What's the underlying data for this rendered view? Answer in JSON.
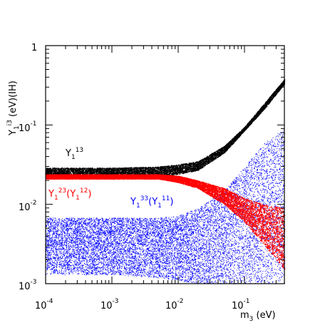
{
  "chart_data": {
    "type": "scatter",
    "x_scale": "log",
    "y_scale": "log",
    "xlim": [
      0.0001,
      0.4
    ],
    "ylim": [
      0.001,
      1
    ],
    "grid": false,
    "x_ticks": [
      {
        "base": "10",
        "exp": "-4"
      },
      {
        "base": "10",
        "exp": "-3"
      },
      {
        "base": "10",
        "exp": "-2"
      },
      {
        "base": "10",
        "exp": "-1"
      }
    ],
    "y_ticks": [
      {
        "base": "10",
        "exp": "-3"
      },
      {
        "base": "10",
        "exp": "-2"
      },
      {
        "base": "10",
        "exp": "-1"
      },
      {
        "base": "1",
        "exp": ""
      }
    ],
    "xlabel": {
      "main": "m",
      "sub": "3",
      "rest": " (eV)"
    },
    "ylabel": {
      "main": "Y",
      "sub": "1",
      "sup": "i3",
      "rest": " (eV)(IH)"
    },
    "annotations": [
      {
        "main": "Y",
        "sub": "1",
        "sup": "13",
        "rest": "",
        "color": "#000000"
      },
      {
        "main": "Y",
        "sub": "1",
        "sup": "23",
        "paren_main": "Y",
        "paren_sub": "1",
        "paren_sup": "12",
        "color": "#ff0000"
      },
      {
        "main": "Y",
        "sub": "1",
        "sup": "33",
        "paren_main": "Y",
        "paren_sub": "1",
        "paren_sup": "11",
        "color": "#0000ff"
      }
    ],
    "series": [
      {
        "color": "#000000",
        "label": "Y_1^13",
        "band": [
          [
            0.0001,
            0.022,
            0.029
          ],
          [
            0.001,
            0.022,
            0.029
          ],
          [
            0.005,
            0.023,
            0.03
          ],
          [
            0.01,
            0.024,
            0.032
          ],
          [
            0.02,
            0.027,
            0.035
          ],
          [
            0.05,
            0.045,
            0.055
          ],
          [
            0.1,
            0.085,
            0.095
          ],
          [
            0.2,
            0.16,
            0.19
          ],
          [
            0.4,
            0.33,
            0.38
          ]
        ]
      },
      {
        "color": "#ff0000",
        "label": "Y_1^23 (Y_1^12)",
        "band": [
          [
            0.0001,
            0.021,
            0.024
          ],
          [
            0.001,
            0.021,
            0.024
          ],
          [
            0.005,
            0.021,
            0.024
          ],
          [
            0.01,
            0.019,
            0.023
          ],
          [
            0.02,
            0.016,
            0.02
          ],
          [
            0.05,
            0.01,
            0.016
          ],
          [
            0.1,
            0.006,
            0.012
          ],
          [
            0.2,
            0.003,
            0.01
          ],
          [
            0.4,
            0.0015,
            0.009
          ]
        ]
      },
      {
        "color": "#0000ff",
        "label": "Y_1^33 (Y_1^11)",
        "band": [
          [
            0.0001,
            0.0013,
            0.0068
          ],
          [
            0.001,
            0.0013,
            0.0068
          ],
          [
            0.005,
            0.0012,
            0.0068
          ],
          [
            0.01,
            0.0011,
            0.0072
          ],
          [
            0.02,
            0.001,
            0.009
          ],
          [
            0.05,
            0.001,
            0.015
          ],
          [
            0.1,
            0.001,
            0.03
          ],
          [
            0.2,
            0.001,
            0.06
          ],
          [
            0.4,
            0.001,
            0.09
          ]
        ]
      }
    ]
  }
}
